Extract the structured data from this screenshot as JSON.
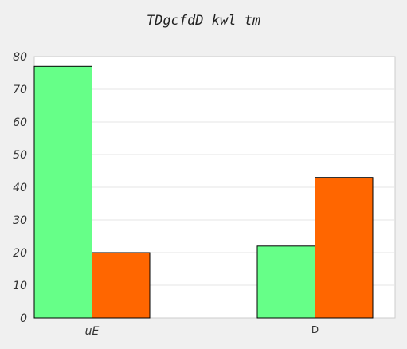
{
  "chart_data": {
    "type": "bar",
    "title": "TDgcfdD kwl tm",
    "xlabel": "",
    "ylabel": "",
    "categories": [
      "uE",
      "D"
    ],
    "series": [
      {
        "values": [
          77,
          22
        ],
        "color": "#66ff88"
      },
      {
        "values": [
          20,
          43
        ],
        "color": "#ff6600"
      }
    ],
    "ylim": [
      0,
      80
    ],
    "yticks": [
      0,
      10,
      20,
      30,
      40,
      50,
      60,
      70,
      80
    ],
    "grid": true
  }
}
